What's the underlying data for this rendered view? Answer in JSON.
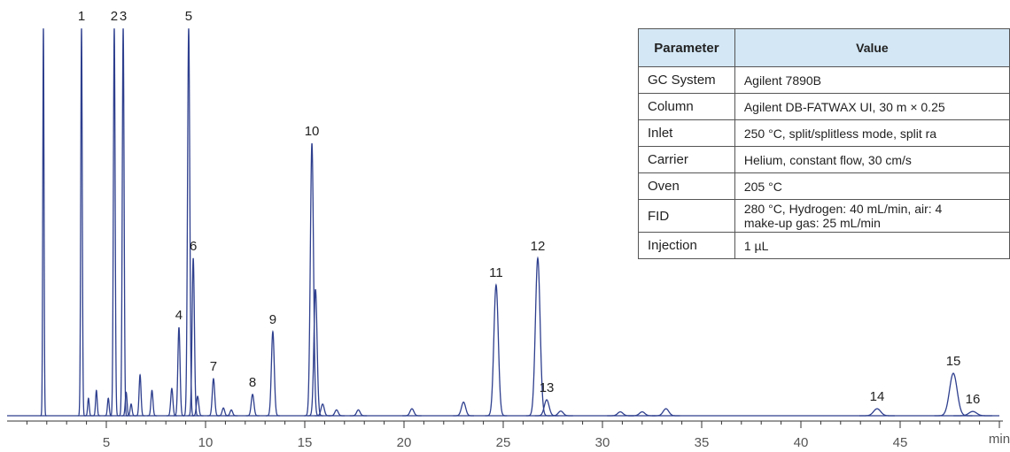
{
  "chart_data": {
    "type": "chromatogram",
    "x_label": "min",
    "color": "#2e3f8e",
    "xlim": [
      0,
      50
    ],
    "ylim": [
      0,
      100
    ],
    "xticks": [
      5,
      10,
      15,
      20,
      25,
      30,
      35,
      40,
      45
    ],
    "xticks_minor": [
      1,
      2,
      3,
      4,
      6,
      7,
      8,
      9,
      11,
      12,
      13,
      14,
      16,
      17,
      18,
      19,
      21,
      22,
      23,
      24,
      26,
      27,
      28,
      29,
      31,
      32,
      33,
      34,
      36,
      37,
      38,
      39,
      41,
      42,
      43,
      44,
      46,
      47,
      48,
      49
    ],
    "peaks": [
      {
        "label": "1",
        "time": 3.75,
        "height": 99.5
      },
      {
        "label": "2",
        "time": 5.4,
        "height": 99.5
      },
      {
        "label": "3",
        "time": 5.85,
        "height": 99.5
      },
      {
        "label": "4",
        "time": 8.66,
        "height": 22.7
      },
      {
        "label": "5",
        "time": 9.15,
        "height": 99.5
      },
      {
        "label": "6",
        "time": 9.38,
        "height": 40.5
      },
      {
        "label": "7",
        "time": 10.4,
        "height": 9.5
      },
      {
        "label": "8",
        "time": 12.37,
        "height": 5.5
      },
      {
        "label": "9",
        "time": 13.39,
        "height": 21.6
      },
      {
        "label": "10",
        "time": 15.36,
        "height": 70
      },
      {
        "label": "11",
        "time": 24.64,
        "height": 33.6
      },
      {
        "label": "12",
        "time": 26.74,
        "height": 40.5
      },
      {
        "label": "13",
        "time": 27.19,
        "height": 4.1
      },
      {
        "label": "14",
        "time": 43.84,
        "height": 1.8
      },
      {
        "label": "15",
        "time": 47.68,
        "height": 10.9
      },
      {
        "label": "16",
        "time": 48.66,
        "height": 1.1
      }
    ],
    "minor_peaks": [
      {
        "time": 1.83,
        "height": 99.5
      },
      {
        "time": 4.1,
        "height": 4.5
      },
      {
        "time": 4.5,
        "height": 6.5
      },
      {
        "time": 5.1,
        "height": 4.5
      },
      {
        "time": 6.0,
        "height": 6
      },
      {
        "time": 6.25,
        "height": 3
      },
      {
        "time": 6.7,
        "height": 10.5
      },
      {
        "time": 7.3,
        "height": 6.5
      },
      {
        "time": 8.3,
        "height": 7
      },
      {
        "time": 9.6,
        "height": 5
      },
      {
        "time": 10.9,
        "height": 2
      },
      {
        "time": 11.3,
        "height": 1.5
      },
      {
        "time": 15.54,
        "height": 32.5
      },
      {
        "time": 15.9,
        "height": 3
      },
      {
        "time": 16.6,
        "height": 1.5
      },
      {
        "time": 17.7,
        "height": 1.5
      },
      {
        "time": 20.4,
        "height": 1.8
      },
      {
        "time": 23.0,
        "height": 3.5
      },
      {
        "time": 27.9,
        "height": 1.2
      },
      {
        "time": 30.9,
        "height": 1
      },
      {
        "time": 32.0,
        "height": 1
      },
      {
        "time": 33.2,
        "height": 1.8
      }
    ]
  },
  "table": {
    "header": [
      "Parameter",
      "Value"
    ],
    "rows": [
      [
        "GC System",
        [
          "Agilent 7890B"
        ]
      ],
      [
        "Column",
        [
          "Agilent DB-FATWAX UI, 30 m × 0.25"
        ]
      ],
      [
        "Inlet",
        [
          "250 °C, split/splitless mode, split ra"
        ]
      ],
      [
        "Carrier",
        [
          "Helium, constant flow, 30 cm/s"
        ]
      ],
      [
        "Oven",
        [
          "205 °C"
        ]
      ],
      [
        "FID",
        [
          "280 °C, Hydrogen: 40 mL/min, air: 4",
          "make-up gas: 25 mL/min"
        ]
      ],
      [
        "Injection",
        [
          "1 µL"
        ]
      ]
    ]
  }
}
